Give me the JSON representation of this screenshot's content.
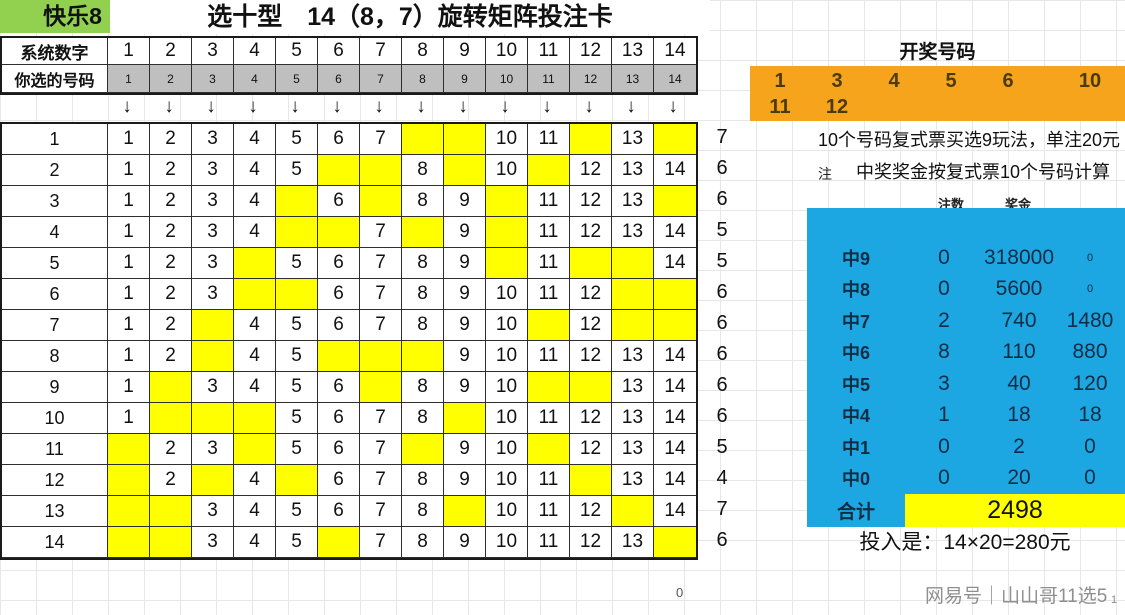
{
  "brand": "快乐8",
  "title": "选十型　14（8，7）旋转矩阵投注卡",
  "header": {
    "system_label": "系统数字",
    "chosen_label": "你选的号码",
    "numbers": [
      "1",
      "2",
      "3",
      "4",
      "5",
      "6",
      "7",
      "8",
      "9",
      "10",
      "11",
      "12",
      "13",
      "14"
    ],
    "arrow": "↓"
  },
  "matrix": {
    "rows": [
      {
        "label": "1",
        "cells": [
          "1",
          "2",
          "3",
          "4",
          "5",
          "6",
          "7",
          "",
          "",
          "10",
          "11",
          "",
          "13",
          ""
        ],
        "count": "7"
      },
      {
        "label": "2",
        "cells": [
          "1",
          "2",
          "3",
          "4",
          "5",
          "",
          "",
          "8",
          "",
          "10",
          "",
          "12",
          "13",
          "14"
        ],
        "count": "6"
      },
      {
        "label": "3",
        "cells": [
          "1",
          "2",
          "3",
          "4",
          "",
          "6",
          "",
          "8",
          "9",
          "",
          "11",
          "12",
          "13",
          ""
        ],
        "count": "6"
      },
      {
        "label": "4",
        "cells": [
          "1",
          "2",
          "3",
          "4",
          "",
          "",
          "7",
          "",
          "9",
          "",
          "11",
          "12",
          "13",
          "14"
        ],
        "count": "5"
      },
      {
        "label": "5",
        "cells": [
          "1",
          "2",
          "3",
          "",
          "5",
          "6",
          "7",
          "8",
          "9",
          "",
          "11",
          "",
          "",
          "14"
        ],
        "count": "5"
      },
      {
        "label": "6",
        "cells": [
          "1",
          "2",
          "3",
          "",
          "",
          "6",
          "7",
          "8",
          "9",
          "10",
          "11",
          "12",
          "",
          ""
        ],
        "count": "6"
      },
      {
        "label": "7",
        "cells": [
          "1",
          "2",
          "",
          "4",
          "5",
          "6",
          "7",
          "8",
          "9",
          "10",
          "",
          "12",
          "",
          ""
        ],
        "count": "6"
      },
      {
        "label": "8",
        "cells": [
          "1",
          "2",
          "",
          "4",
          "5",
          "",
          "",
          "",
          "9",
          "10",
          "11",
          "12",
          "13",
          "14"
        ],
        "count": "6"
      },
      {
        "label": "9",
        "cells": [
          "1",
          "",
          "3",
          "4",
          "5",
          "6",
          "",
          "8",
          "9",
          "10",
          "",
          "",
          "13",
          "14"
        ],
        "count": "6"
      },
      {
        "label": "10",
        "cells": [
          "1",
          "",
          "",
          "",
          "5",
          "6",
          "7",
          "8",
          "",
          "10",
          "11",
          "12",
          "13",
          "14"
        ],
        "count": "6"
      },
      {
        "label": "11",
        "cells": [
          "",
          "2",
          "3",
          "",
          "5",
          "6",
          "7",
          "",
          "9",
          "10",
          "",
          "12",
          "13",
          "14"
        ],
        "count": "5"
      },
      {
        "label": "12",
        "cells": [
          "",
          "2",
          "",
          "4",
          "",
          "6",
          "7",
          "8",
          "9",
          "10",
          "11",
          "",
          "13",
          "14"
        ],
        "count": "4"
      },
      {
        "label": "13",
        "cells": [
          "",
          "",
          "3",
          "4",
          "5",
          "6",
          "7",
          "8",
          "",
          "10",
          "11",
          "12",
          "",
          "14"
        ],
        "count": "7"
      },
      {
        "label": "14",
        "cells": [
          "",
          "",
          "3",
          "4",
          "5",
          "",
          "7",
          "8",
          "9",
          "10",
          "11",
          "12",
          "13",
          ""
        ],
        "count": "6"
      }
    ]
  },
  "draw": {
    "title": "开奖号码",
    "row1": [
      "1",
      "3",
      "4",
      "5",
      "6",
      "10"
    ],
    "row2": [
      "11",
      "12"
    ]
  },
  "notes": {
    "line1": "10个号码复式票买选9玩法，单注20元",
    "prefix": "注",
    "line2": "中奖奖金按复式票10个号码计算"
  },
  "prize_table": {
    "col_bets": "注数",
    "col_prize": "奖金",
    "rows": [
      {
        "label": "中9",
        "bets": "0",
        "prize": "318000",
        "payout": "0",
        "payout_small": true
      },
      {
        "label": "中8",
        "bets": "0",
        "prize": "5600",
        "payout": "0",
        "payout_small": true
      },
      {
        "label": "中7",
        "bets": "2",
        "prize": "740",
        "payout": "1480",
        "payout_small": false
      },
      {
        "label": "中6",
        "bets": "8",
        "prize": "110",
        "payout": "880",
        "payout_small": false
      },
      {
        "label": "中5",
        "bets": "3",
        "prize": "40",
        "payout": "120",
        "payout_small": false
      },
      {
        "label": "中4",
        "bets": "1",
        "prize": "18",
        "payout": "18",
        "payout_small": false
      },
      {
        "label": "中1",
        "bets": "0",
        "prize": "2",
        "payout": "0",
        "payout_small": false
      },
      {
        "label": "中0",
        "bets": "0",
        "prize": "20",
        "payout": "0",
        "payout_small": false
      }
    ],
    "total_label": "合计",
    "total_value": "2498"
  },
  "investment": "投入是：14×20=280元",
  "footer": {
    "zero": "0",
    "watermark": "网易号｜山山哥11选5",
    "page": "1"
  },
  "colors": {
    "brand_green": "#92D050",
    "highlight_yellow": "#FFFF00",
    "draw_orange": "#F6A41C",
    "prize_blue": "#1CA7E2",
    "chosen_gray": "#BFBFBF"
  }
}
